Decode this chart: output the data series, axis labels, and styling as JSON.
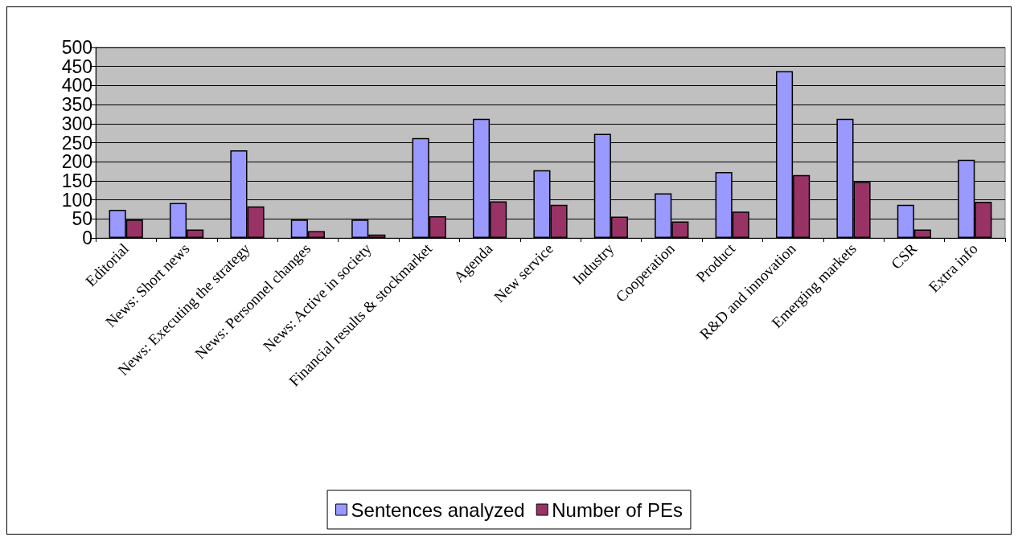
{
  "chart_data": {
    "type": "bar",
    "categories": [
      "Editorial",
      "News: Short news",
      "News: Executing the strategy",
      "News: Personnel changes",
      "News: Active in society",
      "Financial results & stockmarket",
      "Agenda",
      "New service",
      "Industry",
      "Cooperation",
      "Product",
      "R&D and innovation",
      "Emerging markets",
      "CSR",
      "Extra info"
    ],
    "series": [
      {
        "name": "Sentences analyzed",
        "color": "#9999ff",
        "values": [
          74,
          92,
          230,
          48,
          48,
          262,
          313,
          178,
          273,
          117,
          173,
          438,
          313,
          87,
          205
        ]
      },
      {
        "name": "Number of PEs",
        "color": "#993366",
        "values": [
          48,
          22,
          83,
          18,
          9,
          57,
          96,
          87,
          56,
          43,
          69,
          165,
          147,
          22,
          95
        ]
      }
    ],
    "ylim": [
      0,
      500
    ],
    "yticks": [
      0,
      50,
      100,
      150,
      200,
      250,
      300,
      350,
      400,
      450,
      500
    ],
    "grid": "y",
    "legend": "bottom"
  }
}
